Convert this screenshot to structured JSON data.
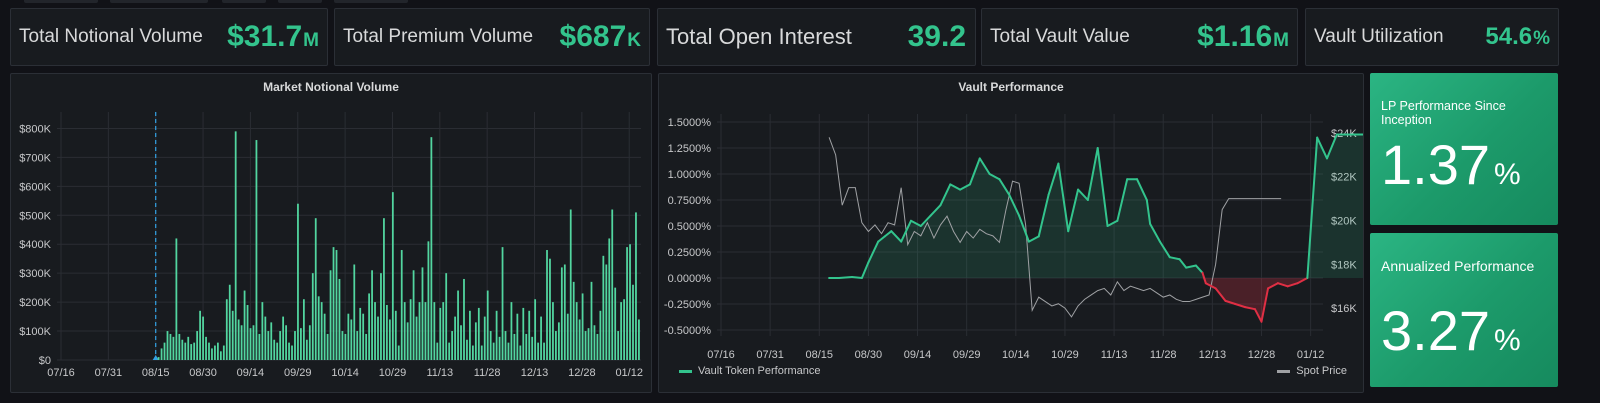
{
  "stats": [
    {
      "label": "Total Notional Volume",
      "value": "$31.7",
      "suffix": "M"
    },
    {
      "label": "Total Premium Volume",
      "value": "$687",
      "suffix": "K"
    },
    {
      "label": "Total Open Interest",
      "value": "39.2",
      "suffix": ""
    },
    {
      "label": "Total Vault Value",
      "value": "$1.16",
      "suffix": "M"
    },
    {
      "label": "Vault Utilization",
      "value": "54.6",
      "suffix": "%"
    }
  ],
  "market_panel": {
    "title": "Market Notional Volume"
  },
  "vault_panel": {
    "title": "Vault Performance",
    "legend_left": "Vault Token Performance",
    "legend_right": "Spot Price"
  },
  "lp_panel": {
    "title": "LP Performance Since Inception",
    "value": "1.37",
    "suffix": "%"
  },
  "annual_panel": {
    "title": "Annualized Performance",
    "value": "3.27",
    "suffix": "%"
  },
  "colors": {
    "accent": "#33c48d",
    "bar": "#52d6a0",
    "negative": "#e02f44",
    "spot": "#9fa1a4",
    "marker": "#33a2e5"
  },
  "chart_data": [
    {
      "type": "bar",
      "title": "Market Notional Volume",
      "x_ticks": [
        "07/16",
        "07/31",
        "08/15",
        "08/30",
        "09/14",
        "09/29",
        "10/14",
        "10/29",
        "11/13",
        "11/28",
        "12/13",
        "12/28",
        "01/12"
      ],
      "y_ticks": [
        "$0",
        "$100K",
        "$200K",
        "$300K",
        "$400K",
        "$500K",
        "$600K",
        "$700K",
        "$800K"
      ],
      "ylim": [
        0,
        850000
      ],
      "bar_start_day": 30,
      "marker_day": 30,
      "values": [
        10000,
        40000,
        60000,
        100000,
        90000,
        80000,
        420000,
        90000,
        70000,
        60000,
        80000,
        55000,
        60000,
        100000,
        170000,
        150000,
        80000,
        60000,
        40000,
        50000,
        60000,
        30000,
        50000,
        210000,
        260000,
        170000,
        790000,
        140000,
        120000,
        240000,
        190000,
        110000,
        120000,
        760000,
        90000,
        200000,
        150000,
        100000,
        130000,
        70000,
        60000,
        100000,
        150000,
        120000,
        60000,
        50000,
        100000,
        540000,
        110000,
        210000,
        70000,
        120000,
        300000,
        490000,
        220000,
        200000,
        160000,
        90000,
        310000,
        390000,
        380000,
        280000,
        100000,
        90000,
        160000,
        140000,
        330000,
        100000,
        180000,
        160000,
        90000,
        230000,
        310000,
        200000,
        150000,
        300000,
        490000,
        190000,
        140000,
        580000,
        170000,
        50000,
        380000,
        200000,
        130000,
        210000,
        310000,
        150000,
        200000,
        320000,
        200000,
        410000,
        770000,
        200000,
        60000,
        180000,
        200000,
        300000,
        60000,
        100000,
        150000,
        240000,
        120000,
        280000,
        70000,
        170000,
        50000,
        130000,
        180000,
        50000,
        150000,
        240000,
        100000,
        60000,
        170000,
        80000,
        390000,
        100000,
        60000,
        200000,
        90000,
        160000,
        50000,
        180000,
        90000,
        170000,
        80000,
        210000,
        60000,
        150000,
        60000,
        380000,
        350000,
        200000,
        100000,
        130000,
        320000,
        330000,
        160000,
        520000,
        270000,
        200000,
        140000,
        230000,
        100000,
        110000,
        270000,
        120000,
        90000,
        170000,
        360000,
        330000,
        420000,
        520000,
        250000,
        100000,
        200000,
        210000,
        390000,
        400000,
        260000,
        510000,
        140000
      ]
    },
    {
      "type": "line",
      "title": "Vault Performance",
      "x_ticks": [
        "07/16",
        "07/31",
        "08/15",
        "08/30",
        "09/14",
        "09/29",
        "10/14",
        "10/29",
        "11/13",
        "11/28",
        "12/13",
        "12/28",
        "01/12"
      ],
      "y_ticks_left": [
        "-0.5000%",
        "-0.2500%",
        "0.0000%",
        "0.2500%",
        "0.5000%",
        "0.7500%",
        "1.0000%",
        "1.2500%",
        "1.5000%"
      ],
      "y_ticks_right": [
        "$16K",
        "$18K",
        "$20K",
        "$22K",
        "$24K"
      ],
      "ylim_left": [
        -0.5,
        1.5
      ],
      "ylim_right": [
        15,
        24.5
      ],
      "series": [
        {
          "name": "Vault Token Performance",
          "x_days": [
            33,
            36,
            40,
            43,
            45,
            48,
            50,
            52,
            55,
            58,
            61,
            64,
            67,
            70,
            73,
            76,
            79,
            82,
            85,
            88,
            91,
            94,
            97,
            100,
            103,
            106,
            109,
            112,
            115,
            118,
            121,
            124,
            127,
            130,
            131,
            134,
            137,
            140,
            142,
            145,
            147,
            148,
            151,
            154,
            157,
            160,
            163,
            165,
            167,
            170,
            173,
            176,
            179,
            182,
            185,
            188,
            191,
            193,
            196,
            198,
            200,
            201,
            202,
            204,
            205
          ],
          "values": [
            0.0,
            0.0,
            0.01,
            0.0,
            0.15,
            0.35,
            0.4,
            0.45,
            0.35,
            0.55,
            0.5,
            0.6,
            0.7,
            0.9,
            0.85,
            0.9,
            1.15,
            1.0,
            0.95,
            0.8,
            0.6,
            0.35,
            0.4,
            0.8,
            1.1,
            0.45,
            0.85,
            0.75,
            1.25,
            0.5,
            0.55,
            0.95,
            0.95,
            0.75,
            0.52,
            0.35,
            0.2,
            0.18,
            0.1,
            0.12,
            0.05,
            -0.05,
            -0.1,
            -0.22,
            -0.25,
            -0.28,
            -0.3,
            -0.42,
            -0.1,
            -0.05,
            -0.08,
            -0.05,
            0.0,
            1.35,
            1.15,
            1.38,
            1.38,
            1.38,
            1.38,
            1.38,
            1.38,
            1.38,
            1.38,
            1.38,
            1.38
          ]
        },
        {
          "name": "Spot Price",
          "x_days": [
            33,
            35,
            37,
            39,
            41,
            43,
            45,
            47,
            49,
            51,
            53,
            55,
            57,
            59,
            61,
            63,
            65,
            67,
            69,
            71,
            73,
            75,
            77,
            79,
            81,
            83,
            85,
            87,
            89,
            91,
            93,
            95,
            97,
            99,
            101,
            103,
            105,
            107,
            109,
            111,
            113,
            115,
            117,
            119,
            121,
            123,
            125,
            127,
            129,
            131,
            133,
            135,
            137,
            139,
            141,
            143,
            145,
            147,
            149,
            151,
            153,
            155,
            157,
            159,
            161,
            163,
            165,
            167,
            169,
            171
          ],
          "values": [
            23.8,
            23,
            20.7,
            21.5,
            21.5,
            19.9,
            19.5,
            19.8,
            19.4,
            19.9,
            19.8,
            21.5,
            18.9,
            19.5,
            19.3,
            19.9,
            19.2,
            19.8,
            20.2,
            19.5,
            19.0,
            19.5,
            19.2,
            19.6,
            19.4,
            19.3,
            19.0,
            20.5,
            21.8,
            21.7,
            19.8,
            15.9,
            16.5,
            16.3,
            16.1,
            16.2,
            16.0,
            15.6,
            16.1,
            16.4,
            16.6,
            16.8,
            16.9,
            16.6,
            17.2,
            16.8,
            17.0,
            16.9,
            16.8,
            16.9,
            16.7,
            16.5,
            16.6,
            16.4,
            16.3,
            16.3,
            16.4,
            16.5,
            16.6,
            18.0,
            20.5,
            21.0,
            21.0,
            21.0,
            21.0,
            21.0,
            21.0,
            21.0,
            21.0,
            21.0
          ]
        }
      ]
    }
  ]
}
